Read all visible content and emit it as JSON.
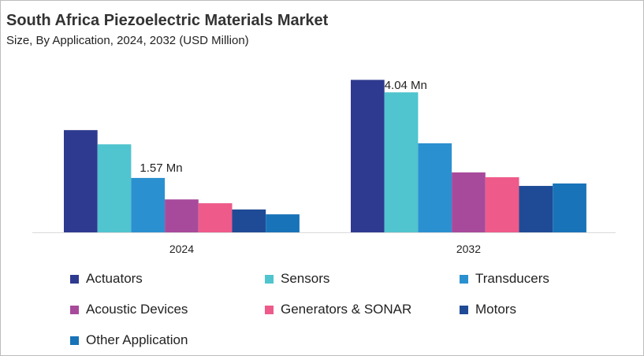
{
  "chart_data": {
    "type": "bar",
    "title": "South Africa Piezoelectric Materials Market",
    "subtitle": "Size, By Application, 2024, 2032 (USD Million)",
    "categories": [
      "2024",
      "2032"
    ],
    "ylim": [
      0,
      4.5
    ],
    "grid": false,
    "legend_placement": "bottom",
    "series": [
      {
        "name": "Actuators",
        "color": "#2e3a8f",
        "values": [
          2.95,
          4.4
        ]
      },
      {
        "name": "Sensors",
        "color": "#50c4cf",
        "values": [
          2.54,
          4.04
        ]
      },
      {
        "name": "Transducers",
        "color": "#2b90d0",
        "values": [
          1.57,
          2.57
        ]
      },
      {
        "name": "Acoustic Devices",
        "color": "#a84a9b",
        "values": [
          0.95,
          1.73
        ]
      },
      {
        "name": "Generators & SONAR",
        "color": "#ee5a8a",
        "values": [
          0.84,
          1.59
        ]
      },
      {
        "name": "Motors",
        "color": "#1f4b96",
        "values": [
          0.66,
          1.34
        ]
      },
      {
        "name": "Other Application",
        "color": "#1873b8",
        "values": [
          0.52,
          1.41
        ]
      }
    ],
    "annotations": [
      {
        "category": "2024",
        "series": "Transducers",
        "text": "1.57 Mn"
      },
      {
        "category": "2032",
        "series": "Sensors",
        "text": "4.04 Mn"
      }
    ]
  }
}
